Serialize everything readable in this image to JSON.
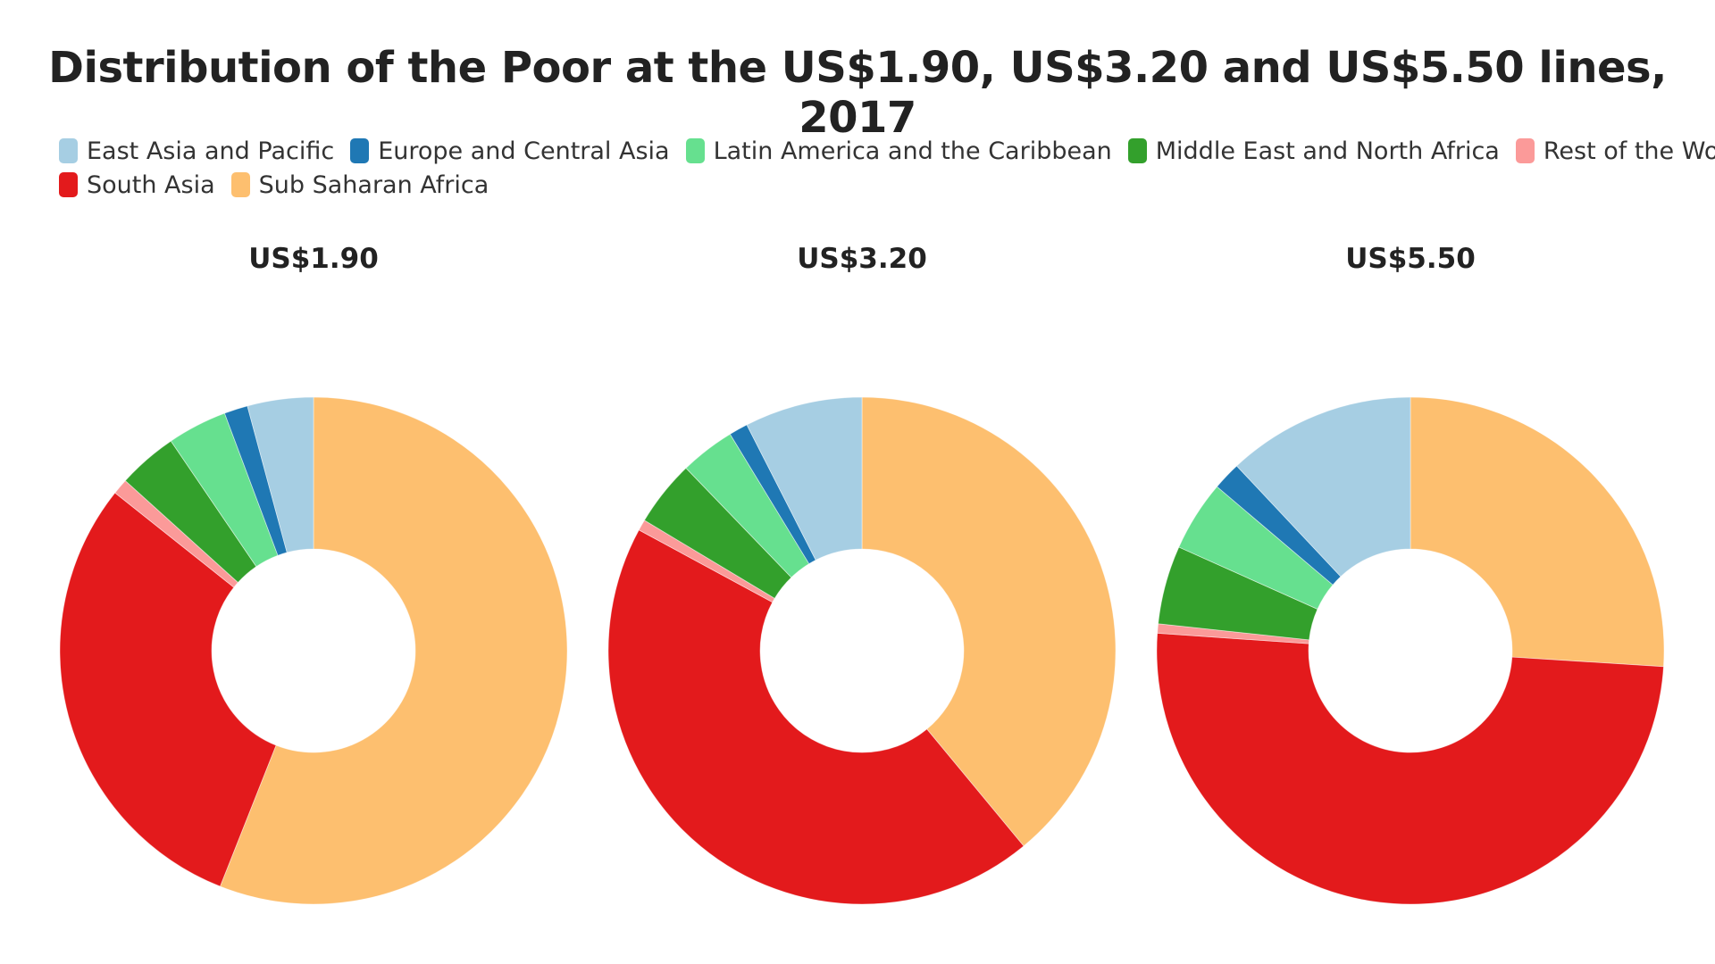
{
  "title": "Distribution of the Poor at the US$1.90, US$3.20 and US$5.50 lines, 2017",
  "legend": {
    "rows": [
      [
        {
          "label": "East Asia and Pacific",
          "color": "#a6cee3"
        },
        {
          "label": "Europe and Central Asia",
          "color": "#1f78b4"
        },
        {
          "label": "Latin America and the Caribbean",
          "color": "#66e08f"
        },
        {
          "label": "Middle East and North Africa",
          "color": "#33a02c"
        },
        {
          "label": "Rest of the World",
          "color": "#fb9a99"
        }
      ],
      [
        {
          "label": "South Asia",
          "color": "#e31a1c"
        },
        {
          "label": "Sub Saharan Africa",
          "color": "#fdbf6f"
        }
      ]
    ]
  },
  "chart_data": [
    {
      "type": "pie",
      "title": "US$1.90",
      "categories": [
        "East Asia and Pacific",
        "Europe and Central Asia",
        "Latin America and the Caribbean",
        "Middle East and North Africa",
        "Rest of the World",
        "South Asia",
        "Sub Saharan Africa"
      ],
      "values": [
        4.2,
        1.5,
        3.8,
        3.8,
        1.0,
        29.7,
        56.0
      ],
      "colors": [
        "#a6cee3",
        "#1f78b4",
        "#66e08f",
        "#33a02c",
        "#fb9a99",
        "#e31a1c",
        "#fdbf6f"
      ]
    },
    {
      "type": "pie",
      "title": "US$3.20",
      "categories": [
        "East Asia and Pacific",
        "Europe and Central Asia",
        "Latin America and the Caribbean",
        "Middle East and North Africa",
        "Rest of the World",
        "South Asia",
        "Sub Saharan Africa"
      ],
      "values": [
        7.5,
        1.2,
        3.5,
        4.2,
        0.7,
        43.9,
        39.0
      ],
      "colors": [
        "#a6cee3",
        "#1f78b4",
        "#66e08f",
        "#33a02c",
        "#fb9a99",
        "#e31a1c",
        "#fdbf6f"
      ]
    },
    {
      "type": "pie",
      "title": "US$5.50",
      "categories": [
        "East Asia and Pacific",
        "Europe and Central Asia",
        "Latin America and the Caribbean",
        "Middle East and North Africa",
        "Rest of the World",
        "South Asia",
        "Sub Saharan Africa"
      ],
      "values": [
        12.0,
        1.8,
        4.5,
        5.0,
        0.6,
        50.1,
        26.0
      ],
      "colors": [
        "#a6cee3",
        "#1f78b4",
        "#66e08f",
        "#33a02c",
        "#fb9a99",
        "#e31a1c",
        "#fdbf6f"
      ]
    }
  ]
}
